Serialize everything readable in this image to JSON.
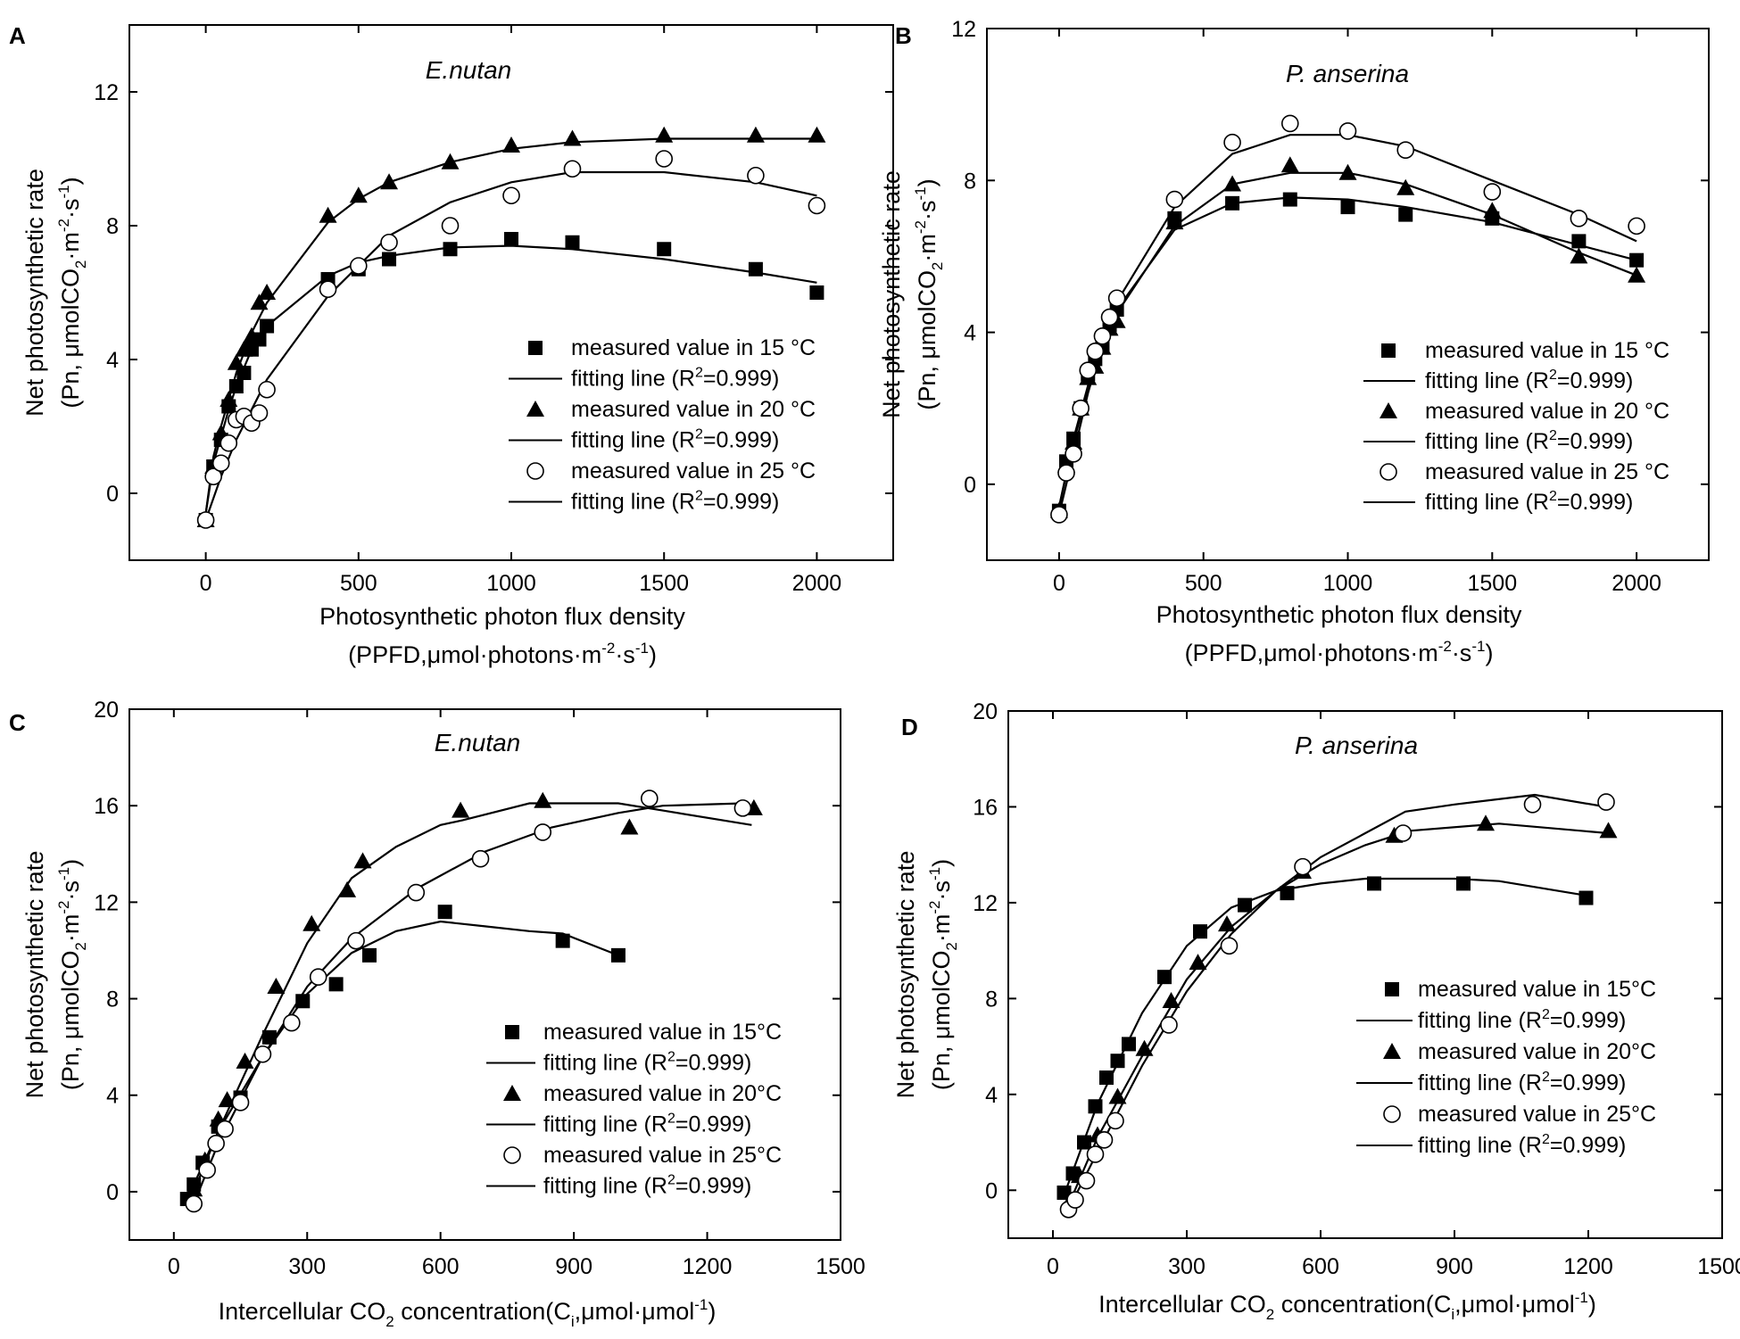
{
  "legend_template": {
    "measured": "measured value in",
    "fitting": "fitting line (R",
    "r2_sup": "2",
    "r2_value": "=0.999)"
  },
  "chart_data": [
    {
      "panel": "A",
      "type": "scatter",
      "title": "E.nutan",
      "xlabel_line1": "Photosynthetic photon flux density",
      "xlabel_line2": "(PPFD,μmol·photons·m-2·s-1)",
      "ylabel_line1": "Net photosynthetic rate",
      "ylabel_line2": "(Pn, μmolCO2·m-2·s-1)",
      "xlim": [
        -250,
        2250
      ],
      "ylim": [
        -2,
        14
      ],
      "xticks": [
        0,
        500,
        1000,
        1500,
        2000
      ],
      "yticks": [
        0,
        4,
        8,
        12
      ],
      "legend_placement": "bottom-right",
      "series": [
        {
          "name": "measured value in 15 °C",
          "temp_label": "15 °C",
          "marker": "square",
          "x": [
            0,
            25,
            50,
            75,
            100,
            125,
            150,
            175,
            200,
            400,
            500,
            600,
            800,
            1000,
            1200,
            1500,
            1800,
            2000
          ],
          "y": [
            -0.8,
            0.8,
            1.6,
            2.6,
            3.2,
            3.6,
            4.3,
            4.6,
            5.0,
            6.4,
            6.7,
            7.0,
            7.3,
            7.6,
            7.5,
            7.3,
            6.7,
            6.0
          ],
          "fit_x": [
            0,
            25,
            50,
            75,
            100,
            150,
            200,
            400,
            500,
            600,
            800,
            1000,
            1200,
            1500,
            1800,
            2000
          ],
          "fit_y": [
            -0.6,
            0.9,
            1.7,
            2.5,
            3.2,
            4.3,
            5.0,
            6.5,
            6.9,
            7.1,
            7.35,
            7.4,
            7.3,
            7.0,
            6.6,
            6.3
          ]
        },
        {
          "name": "measured value in 20 °C",
          "temp_label": "20 °C",
          "marker": "triangle",
          "x": [
            0,
            25,
            50,
            75,
            100,
            125,
            150,
            175,
            200,
            400,
            500,
            600,
            800,
            1000,
            1200,
            1500,
            1800,
            2000
          ],
          "y": [
            -0.8,
            0.8,
            1.8,
            2.8,
            3.9,
            4.3,
            4.7,
            5.7,
            6.0,
            8.3,
            8.9,
            9.3,
            9.9,
            10.4,
            10.6,
            10.7,
            10.7,
            10.7
          ],
          "fit_x": [
            0,
            25,
            50,
            75,
            100,
            150,
            200,
            400,
            500,
            600,
            800,
            1000,
            1200,
            1500,
            1800,
            2000
          ],
          "fit_y": [
            -0.6,
            1.1,
            2.0,
            2.8,
            3.6,
            4.8,
            5.7,
            8.1,
            8.8,
            9.3,
            9.9,
            10.3,
            10.5,
            10.6,
            10.6,
            10.6
          ]
        },
        {
          "name": "measured value in 25 °C",
          "temp_label": "25 °C",
          "marker": "circle",
          "x": [
            0,
            25,
            50,
            75,
            100,
            125,
            150,
            175,
            200,
            400,
            500,
            600,
            800,
            1000,
            1200,
            1500,
            1800,
            2000
          ],
          "y": [
            -0.8,
            0.5,
            0.9,
            1.5,
            2.2,
            2.3,
            2.1,
            2.4,
            3.1,
            6.1,
            6.8,
            7.5,
            8.0,
            8.9,
            9.7,
            10.0,
            9.5,
            8.6
          ],
          "fit_x": [
            0,
            50,
            100,
            200,
            400,
            500,
            600,
            800,
            1000,
            1200,
            1500,
            1800,
            2000
          ],
          "fit_y": [
            -0.8,
            0.5,
            1.6,
            3.4,
            5.9,
            6.8,
            7.7,
            8.7,
            9.3,
            9.6,
            9.6,
            9.3,
            8.9
          ]
        }
      ]
    },
    {
      "panel": "B",
      "type": "scatter",
      "title": "P. anserina",
      "xlabel_line1": "Photosynthetic photon flux density",
      "xlabel_line2": "(PPFD,μmol·photons·m-2·s-1)",
      "ylabel_line1": "Net photosynthetic rate",
      "ylabel_line2": "(Pn, μmolCO2·m-2·s-1)",
      "xlim": [
        -250,
        2250
      ],
      "ylim": [
        -2,
        12
      ],
      "xticks": [
        0,
        500,
        1000,
        1500,
        2000
      ],
      "yticks": [
        0,
        4,
        8,
        12
      ],
      "legend_placement": "bottom-right",
      "series": [
        {
          "name": "measured value in 15 °C",
          "temp_label": "15 °C",
          "marker": "square",
          "x": [
            0,
            25,
            50,
            75,
            100,
            125,
            150,
            175,
            200,
            400,
            600,
            800,
            1000,
            1200,
            1500,
            1800,
            2000
          ],
          "y": [
            -0.7,
            0.6,
            1.2,
            2.0,
            2.9,
            3.3,
            3.6,
            4.2,
            4.6,
            7.0,
            7.4,
            7.5,
            7.3,
            7.1,
            7.0,
            6.4,
            5.9
          ],
          "fit_x": [
            0,
            50,
            100,
            150,
            200,
            400,
            600,
            800,
            1000,
            1200,
            1500,
            1800,
            2000
          ],
          "fit_y": [
            -0.6,
            1.2,
            2.6,
            3.7,
            4.6,
            6.7,
            7.4,
            7.55,
            7.5,
            7.3,
            6.9,
            6.3,
            5.9
          ]
        },
        {
          "name": "measured value in 20 °C",
          "temp_label": "20 °C",
          "marker": "triangle",
          "x": [
            0,
            25,
            50,
            75,
            100,
            125,
            150,
            175,
            200,
            400,
            600,
            800,
            1000,
            1200,
            1500,
            1800,
            2000
          ],
          "y": [
            -0.7,
            0.5,
            1.1,
            2.0,
            2.8,
            3.1,
            3.6,
            4.1,
            4.3,
            6.9,
            7.9,
            8.4,
            8.2,
            7.8,
            7.2,
            6.0,
            5.5
          ],
          "fit_x": [
            0,
            50,
            100,
            150,
            200,
            400,
            600,
            800,
            1000,
            1200,
            1500,
            1800,
            2000
          ],
          "fit_y": [
            -0.6,
            1.1,
            2.5,
            3.6,
            4.5,
            6.8,
            7.9,
            8.2,
            8.2,
            7.9,
            7.1,
            6.1,
            5.5
          ]
        },
        {
          "name": "measured value in 25 °C",
          "temp_label": "25 °C",
          "marker": "circle",
          "x": [
            0,
            25,
            50,
            75,
            100,
            125,
            150,
            175,
            200,
            400,
            600,
            800,
            1000,
            1200,
            1500,
            1800,
            2000
          ],
          "y": [
            -0.8,
            0.3,
            0.8,
            2.0,
            3.0,
            3.5,
            3.9,
            4.4,
            4.9,
            7.5,
            9.0,
            9.5,
            9.3,
            8.8,
            7.7,
            7.0,
            6.8
          ],
          "fit_x": [
            0,
            50,
            100,
            150,
            200,
            400,
            600,
            800,
            1000,
            1200,
            1500,
            1800,
            2000
          ],
          "fit_y": [
            -0.8,
            0.8,
            2.4,
            3.7,
            4.8,
            7.3,
            8.7,
            9.2,
            9.2,
            8.9,
            8.0,
            7.1,
            6.4
          ]
        }
      ]
    },
    {
      "panel": "C",
      "type": "scatter",
      "title": "E.nutan",
      "xlabel_line1": "Intercellular CO2 concentration(Ci,μmol·μmol-1)",
      "ylabel_line1": "Net photosynthetic rate",
      "ylabel_line2": "(Pn, μmolCO2·m-2·s-1)",
      "xlim": [
        -100,
        1500
      ],
      "ylim": [
        -2,
        20
      ],
      "xticks": [
        0,
        300,
        600,
        900,
        1200,
        1500
      ],
      "yticks": [
        0,
        4,
        8,
        12,
        16,
        20
      ],
      "legend_placement": "bottom-right",
      "series": [
        {
          "name": "measured value in 15°C",
          "temp_label": "15°C",
          "marker": "square",
          "x": [
            30,
            45,
            65,
            100,
            150,
            215,
            290,
            365,
            440,
            610,
            875,
            1000
          ],
          "y": [
            -0.3,
            0.3,
            1.2,
            2.7,
            3.9,
            6.4,
            7.9,
            8.6,
            9.8,
            11.6,
            10.4,
            9.8
          ],
          "fit_x": [
            30,
            100,
            200,
            300,
            400,
            500,
            600,
            700,
            800,
            875,
            1000
          ],
          "fit_y": [
            -0.3,
            2.5,
            5.6,
            8.2,
            9.9,
            10.8,
            11.2,
            11.0,
            10.8,
            10.7,
            9.8
          ]
        },
        {
          "name": "measured value in 20°C",
          "temp_label": "20°C",
          "marker": "triangle",
          "x": [
            45,
            70,
            100,
            120,
            160,
            230,
            310,
            390,
            425,
            645,
            830,
            1025,
            1305
          ],
          "y": [
            0.1,
            1.3,
            3.0,
            3.8,
            5.4,
            8.5,
            11.1,
            12.5,
            13.7,
            15.8,
            16.2,
            15.1,
            15.9
          ],
          "fit_x": [
            45,
            100,
            200,
            300,
            400,
            500,
            600,
            650,
            800,
            1000,
            1100,
            1300
          ],
          "fit_y": [
            0.0,
            2.5,
            6.5,
            10.3,
            13.0,
            14.3,
            15.2,
            15.4,
            16.1,
            16.1,
            15.8,
            15.2
          ]
        },
        {
          "name": "measured value in 25°C",
          "temp_label": "25°C",
          "marker": "circle",
          "x": [
            45,
            75,
            95,
            115,
            150,
            200,
            265,
            325,
            410,
            545,
            690,
            830,
            1070,
            1280
          ],
          "y": [
            -0.5,
            0.9,
            2.0,
            2.6,
            3.7,
            5.7,
            7.0,
            8.9,
            10.4,
            12.4,
            13.8,
            14.9,
            16.3,
            15.9
          ],
          "fit_x": [
            45,
            100,
            200,
            300,
            400,
            550,
            700,
            850,
            1000,
            1100,
            1280
          ],
          "fit_y": [
            -0.5,
            2.0,
            5.6,
            8.5,
            10.5,
            12.6,
            14.1,
            15.1,
            15.7,
            16.0,
            16.1
          ]
        }
      ]
    },
    {
      "panel": "D",
      "type": "scatter",
      "title": "P. anserina",
      "xlabel_line1": "Intercellular CO2 concentration(Ci,μmol·μmol-1)",
      "ylabel_line1": "Net photosynthetic rate",
      "ylabel_line2": "(Pn, μmolCO2·m-2·s-1)",
      "xlim": [
        -100,
        1500
      ],
      "ylim": [
        -2,
        20
      ],
      "xticks": [
        0,
        300,
        600,
        900,
        1200,
        1500
      ],
      "yticks": [
        0,
        4,
        8,
        12,
        16,
        20
      ],
      "legend_placement": "bottom-right",
      "series": [
        {
          "name": "measured value in 15°C",
          "temp_label": "15°C",
          "marker": "square",
          "x": [
            25,
            45,
            70,
            95,
            120,
            145,
            170,
            250,
            330,
            430,
            525,
            720,
            920,
            1195
          ],
          "y": [
            -0.1,
            0.7,
            2.0,
            3.5,
            4.7,
            5.4,
            6.1,
            8.9,
            10.8,
            11.9,
            12.4,
            12.8,
            12.8,
            12.2
          ],
          "fit_x": [
            25,
            100,
            200,
            300,
            400,
            500,
            600,
            700,
            900,
            1000,
            1195
          ],
          "fit_y": [
            -0.2,
            3.6,
            7.4,
            10.2,
            11.8,
            12.5,
            12.8,
            13.0,
            13.0,
            12.9,
            12.3
          ]
        },
        {
          "name": "measured value in 20°C",
          "temp_label": "20°C",
          "marker": "triangle",
          "x": [
            40,
            60,
            100,
            145,
            205,
            265,
            325,
            390,
            560,
            765,
            970,
            1245
          ],
          "y": [
            -0.4,
            0.6,
            2.3,
            3.9,
            5.9,
            7.9,
            9.5,
            11.1,
            13.3,
            14.8,
            15.3,
            15.0
          ],
          "fit_x": [
            40,
            100,
            200,
            300,
            400,
            500,
            600,
            700,
            800,
            1000,
            1245
          ],
          "fit_y": [
            -0.4,
            2.2,
            5.6,
            8.8,
            11.0,
            12.5,
            13.6,
            14.4,
            15.0,
            15.3,
            14.9
          ]
        },
        {
          "name": "measured value in 25°C",
          "temp_label": "25°C",
          "marker": "circle",
          "x": [
            35,
            50,
            75,
            95,
            115,
            140,
            260,
            395,
            560,
            785,
            1075,
            1240
          ],
          "y": [
            -0.8,
            -0.4,
            0.4,
            1.5,
            2.1,
            2.9,
            6.9,
            10.2,
            13.5,
            14.9,
            16.1,
            16.2
          ],
          "fit_x": [
            35,
            100,
            200,
            300,
            400,
            500,
            600,
            700,
            790,
            900,
            1080,
            1240
          ],
          "fit_y": [
            -0.8,
            1.6,
            5.2,
            8.3,
            10.7,
            12.5,
            13.9,
            14.9,
            15.8,
            16.1,
            16.5,
            16.0
          ]
        }
      ]
    }
  ]
}
